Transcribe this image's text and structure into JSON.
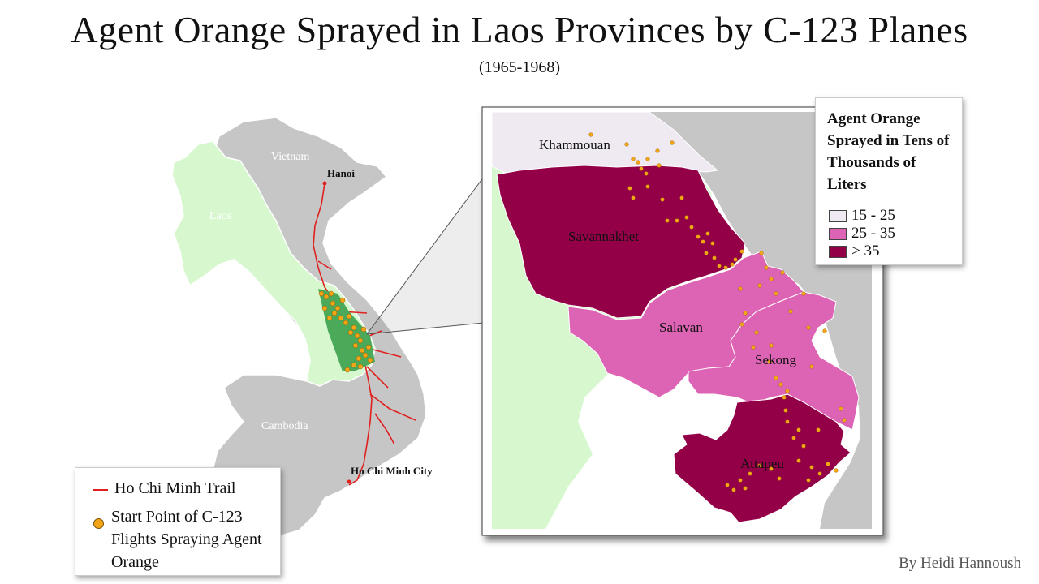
{
  "title": "Agent Orange Sprayed in Laos Provinces by C-123 Planes",
  "subtitle": "(1965-1968)",
  "credit": "By Heidi Hannoush",
  "overview_map": {
    "labels": {
      "vietnam": "Vietnam",
      "laos": "Laos",
      "cambodia": "Cambodia",
      "hanoi": "Hanoi",
      "hcmc": "Ho Chi Minh City"
    }
  },
  "inset_map": {
    "provinces": {
      "khammouan": "Khammouan",
      "savannakhet": "Savannakhet",
      "salavan": "Salavan",
      "sekong": "Sekong",
      "attapeu": "Attapeu"
    }
  },
  "legend_left": {
    "trail_label": "Ho Chi Minh Trail",
    "dot_label": "Start Point of C-123 Flights Spraying Agent Orange"
  },
  "legend_right": {
    "title": "Agent Orange Sprayed in Tens of Thousands of Liters",
    "classes": [
      {
        "label": "15 - 25",
        "color": "#efe9f2"
      },
      {
        "label": "25 - 35",
        "color": "#dd63b4"
      },
      {
        "label": "> 35",
        "color": "#930048"
      }
    ]
  },
  "colors": {
    "land": "#c6c6c6",
    "laos": "#d7f8cf",
    "spray_zone": "#4aaa5a",
    "trail": "#e0201f",
    "dot": "#f2a516",
    "water": "#ffffff"
  }
}
